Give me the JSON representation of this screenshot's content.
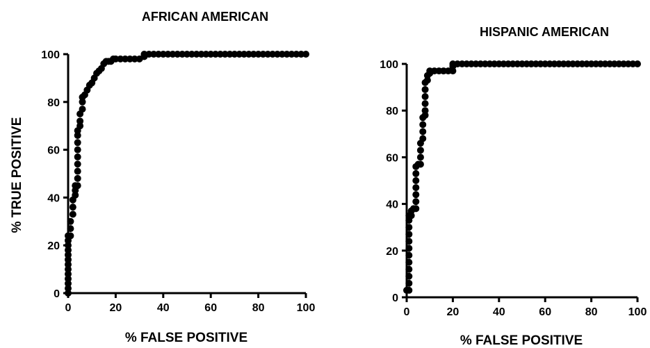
{
  "chart_data": [
    {
      "type": "scatter",
      "title": "AFRICAN AMERICAN",
      "xlabel": "% FALSE POSITIVE",
      "ylabel": "% TRUE POSITIVE",
      "xlim": [
        0,
        100
      ],
      "ylim": [
        0,
        100
      ],
      "xticks": [
        "0",
        "20",
        "40",
        "60",
        "80",
        "100"
      ],
      "yticks": [
        "0",
        "20",
        "40",
        "60",
        "80",
        "100"
      ],
      "grid": false,
      "legend": "none",
      "marker_color": "#000000",
      "series": [
        {
          "points": [
            [
              0,
              0
            ],
            [
              0,
              2
            ],
            [
              0,
              4
            ],
            [
              0,
              6
            ],
            [
              0,
              8
            ],
            [
              0,
              10
            ],
            [
              0,
              12
            ],
            [
              0,
              14
            ],
            [
              0,
              16
            ],
            [
              0,
              18
            ],
            [
              0,
              20
            ],
            [
              0,
              22
            ],
            [
              0,
              24
            ],
            [
              1,
              24
            ],
            [
              1,
              27
            ],
            [
              1,
              30
            ],
            [
              2,
              33
            ],
            [
              2,
              36
            ],
            [
              2,
              39
            ],
            [
              3,
              41
            ],
            [
              3,
              43
            ],
            [
              3,
              45
            ],
            [
              4,
              45
            ],
            [
              4,
              48
            ],
            [
              4,
              51
            ],
            [
              4,
              54
            ],
            [
              4,
              57
            ],
            [
              4,
              60
            ],
            [
              4,
              63
            ],
            [
              4,
              66
            ],
            [
              4,
              68
            ],
            [
              5,
              70
            ],
            [
              5,
              72
            ],
            [
              5,
              75
            ],
            [
              6,
              77
            ],
            [
              6,
              80
            ],
            [
              6,
              82
            ],
            [
              7,
              83
            ],
            [
              8,
              85
            ],
            [
              9,
              87
            ],
            [
              10,
              88
            ],
            [
              11,
              90
            ],
            [
              12,
              92
            ],
            [
              13,
              93
            ],
            [
              14,
              94
            ],
            [
              15,
              96
            ],
            [
              16,
              97
            ],
            [
              17,
              97
            ],
            [
              18,
              97
            ],
            [
              19,
              98
            ],
            [
              20,
              98
            ],
            [
              22,
              98
            ],
            [
              24,
              98
            ],
            [
              26,
              98
            ],
            [
              28,
              98
            ],
            [
              30,
              98
            ],
            [
              32,
              99
            ],
            [
              32,
              100
            ],
            [
              34,
              100
            ],
            [
              36,
              100
            ],
            [
              38,
              100
            ],
            [
              40,
              100
            ],
            [
              42,
              100
            ],
            [
              44,
              100
            ],
            [
              46,
              100
            ],
            [
              48,
              100
            ],
            [
              50,
              100
            ],
            [
              52,
              100
            ],
            [
              54,
              100
            ],
            [
              56,
              100
            ],
            [
              58,
              100
            ],
            [
              60,
              100
            ],
            [
              62,
              100
            ],
            [
              64,
              100
            ],
            [
              66,
              100
            ],
            [
              68,
              100
            ],
            [
              70,
              100
            ],
            [
              72,
              100
            ],
            [
              74,
              100
            ],
            [
              76,
              100
            ],
            [
              78,
              100
            ],
            [
              80,
              100
            ],
            [
              82,
              100
            ],
            [
              84,
              100
            ],
            [
              86,
              100
            ],
            [
              88,
              100
            ],
            [
              90,
              100
            ],
            [
              92,
              100
            ],
            [
              94,
              100
            ],
            [
              96,
              100
            ],
            [
              98,
              100
            ],
            [
              100,
              100
            ]
          ]
        }
      ]
    },
    {
      "type": "scatter",
      "title": "HISPANIC AMERICAN",
      "xlabel": "% FALSE POSITIVE",
      "ylabel": "",
      "xlim": [
        0,
        100
      ],
      "ylim": [
        0,
        100
      ],
      "xticks": [
        "0",
        "20",
        "40",
        "60",
        "80",
        "100"
      ],
      "yticks": [
        "0",
        "20",
        "40",
        "60",
        "80",
        "100"
      ],
      "grid": false,
      "legend": "none",
      "marker_color": "#000000",
      "series": [
        {
          "points": [
            [
              0,
              3
            ],
            [
              1,
              3
            ],
            [
              1,
              6
            ],
            [
              1,
              9
            ],
            [
              1,
              12
            ],
            [
              1,
              15
            ],
            [
              1,
              18
            ],
            [
              1,
              21
            ],
            [
              1,
              24
            ],
            [
              1,
              27
            ],
            [
              1,
              30
            ],
            [
              1,
              33
            ],
            [
              1,
              35
            ],
            [
              2,
              35
            ],
            [
              2,
              37
            ],
            [
              3,
              38
            ],
            [
              4,
              38
            ],
            [
              4,
              41
            ],
            [
              4,
              44
            ],
            [
              4,
              47
            ],
            [
              4,
              50
            ],
            [
              4,
              53
            ],
            [
              4,
              56
            ],
            [
              5,
              57
            ],
            [
              6,
              57
            ],
            [
              6,
              60
            ],
            [
              6,
              63
            ],
            [
              6,
              66
            ],
            [
              7,
              68
            ],
            [
              7,
              71
            ],
            [
              7,
              74
            ],
            [
              7,
              77
            ],
            [
              8,
              78
            ],
            [
              8,
              80
            ],
            [
              8,
              83
            ],
            [
              8,
              86
            ],
            [
              8,
              89
            ],
            [
              8,
              92
            ],
            [
              9,
              93
            ],
            [
              9,
              95
            ],
            [
              10,
              96
            ],
            [
              10,
              97
            ],
            [
              12,
              97
            ],
            [
              14,
              97
            ],
            [
              16,
              97
            ],
            [
              18,
              97
            ],
            [
              20,
              97
            ],
            [
              20,
              99
            ],
            [
              20,
              100
            ],
            [
              22,
              100
            ],
            [
              24,
              100
            ],
            [
              26,
              100
            ],
            [
              28,
              100
            ],
            [
              30,
              100
            ],
            [
              32,
              100
            ],
            [
              34,
              100
            ],
            [
              36,
              100
            ],
            [
              38,
              100
            ],
            [
              40,
              100
            ],
            [
              42,
              100
            ],
            [
              44,
              100
            ],
            [
              46,
              100
            ],
            [
              48,
              100
            ],
            [
              50,
              100
            ],
            [
              52,
              100
            ],
            [
              54,
              100
            ],
            [
              56,
              100
            ],
            [
              58,
              100
            ],
            [
              60,
              100
            ],
            [
              62,
              100
            ],
            [
              64,
              100
            ],
            [
              66,
              100
            ],
            [
              68,
              100
            ],
            [
              70,
              100
            ],
            [
              72,
              100
            ],
            [
              74,
              100
            ],
            [
              76,
              100
            ],
            [
              78,
              100
            ],
            [
              80,
              100
            ],
            [
              82,
              100
            ],
            [
              84,
              100
            ],
            [
              86,
              100
            ],
            [
              88,
              100
            ],
            [
              90,
              100
            ],
            [
              92,
              100
            ],
            [
              94,
              100
            ],
            [
              96,
              100
            ],
            [
              98,
              100
            ],
            [
              100,
              100
            ]
          ]
        }
      ]
    }
  ]
}
